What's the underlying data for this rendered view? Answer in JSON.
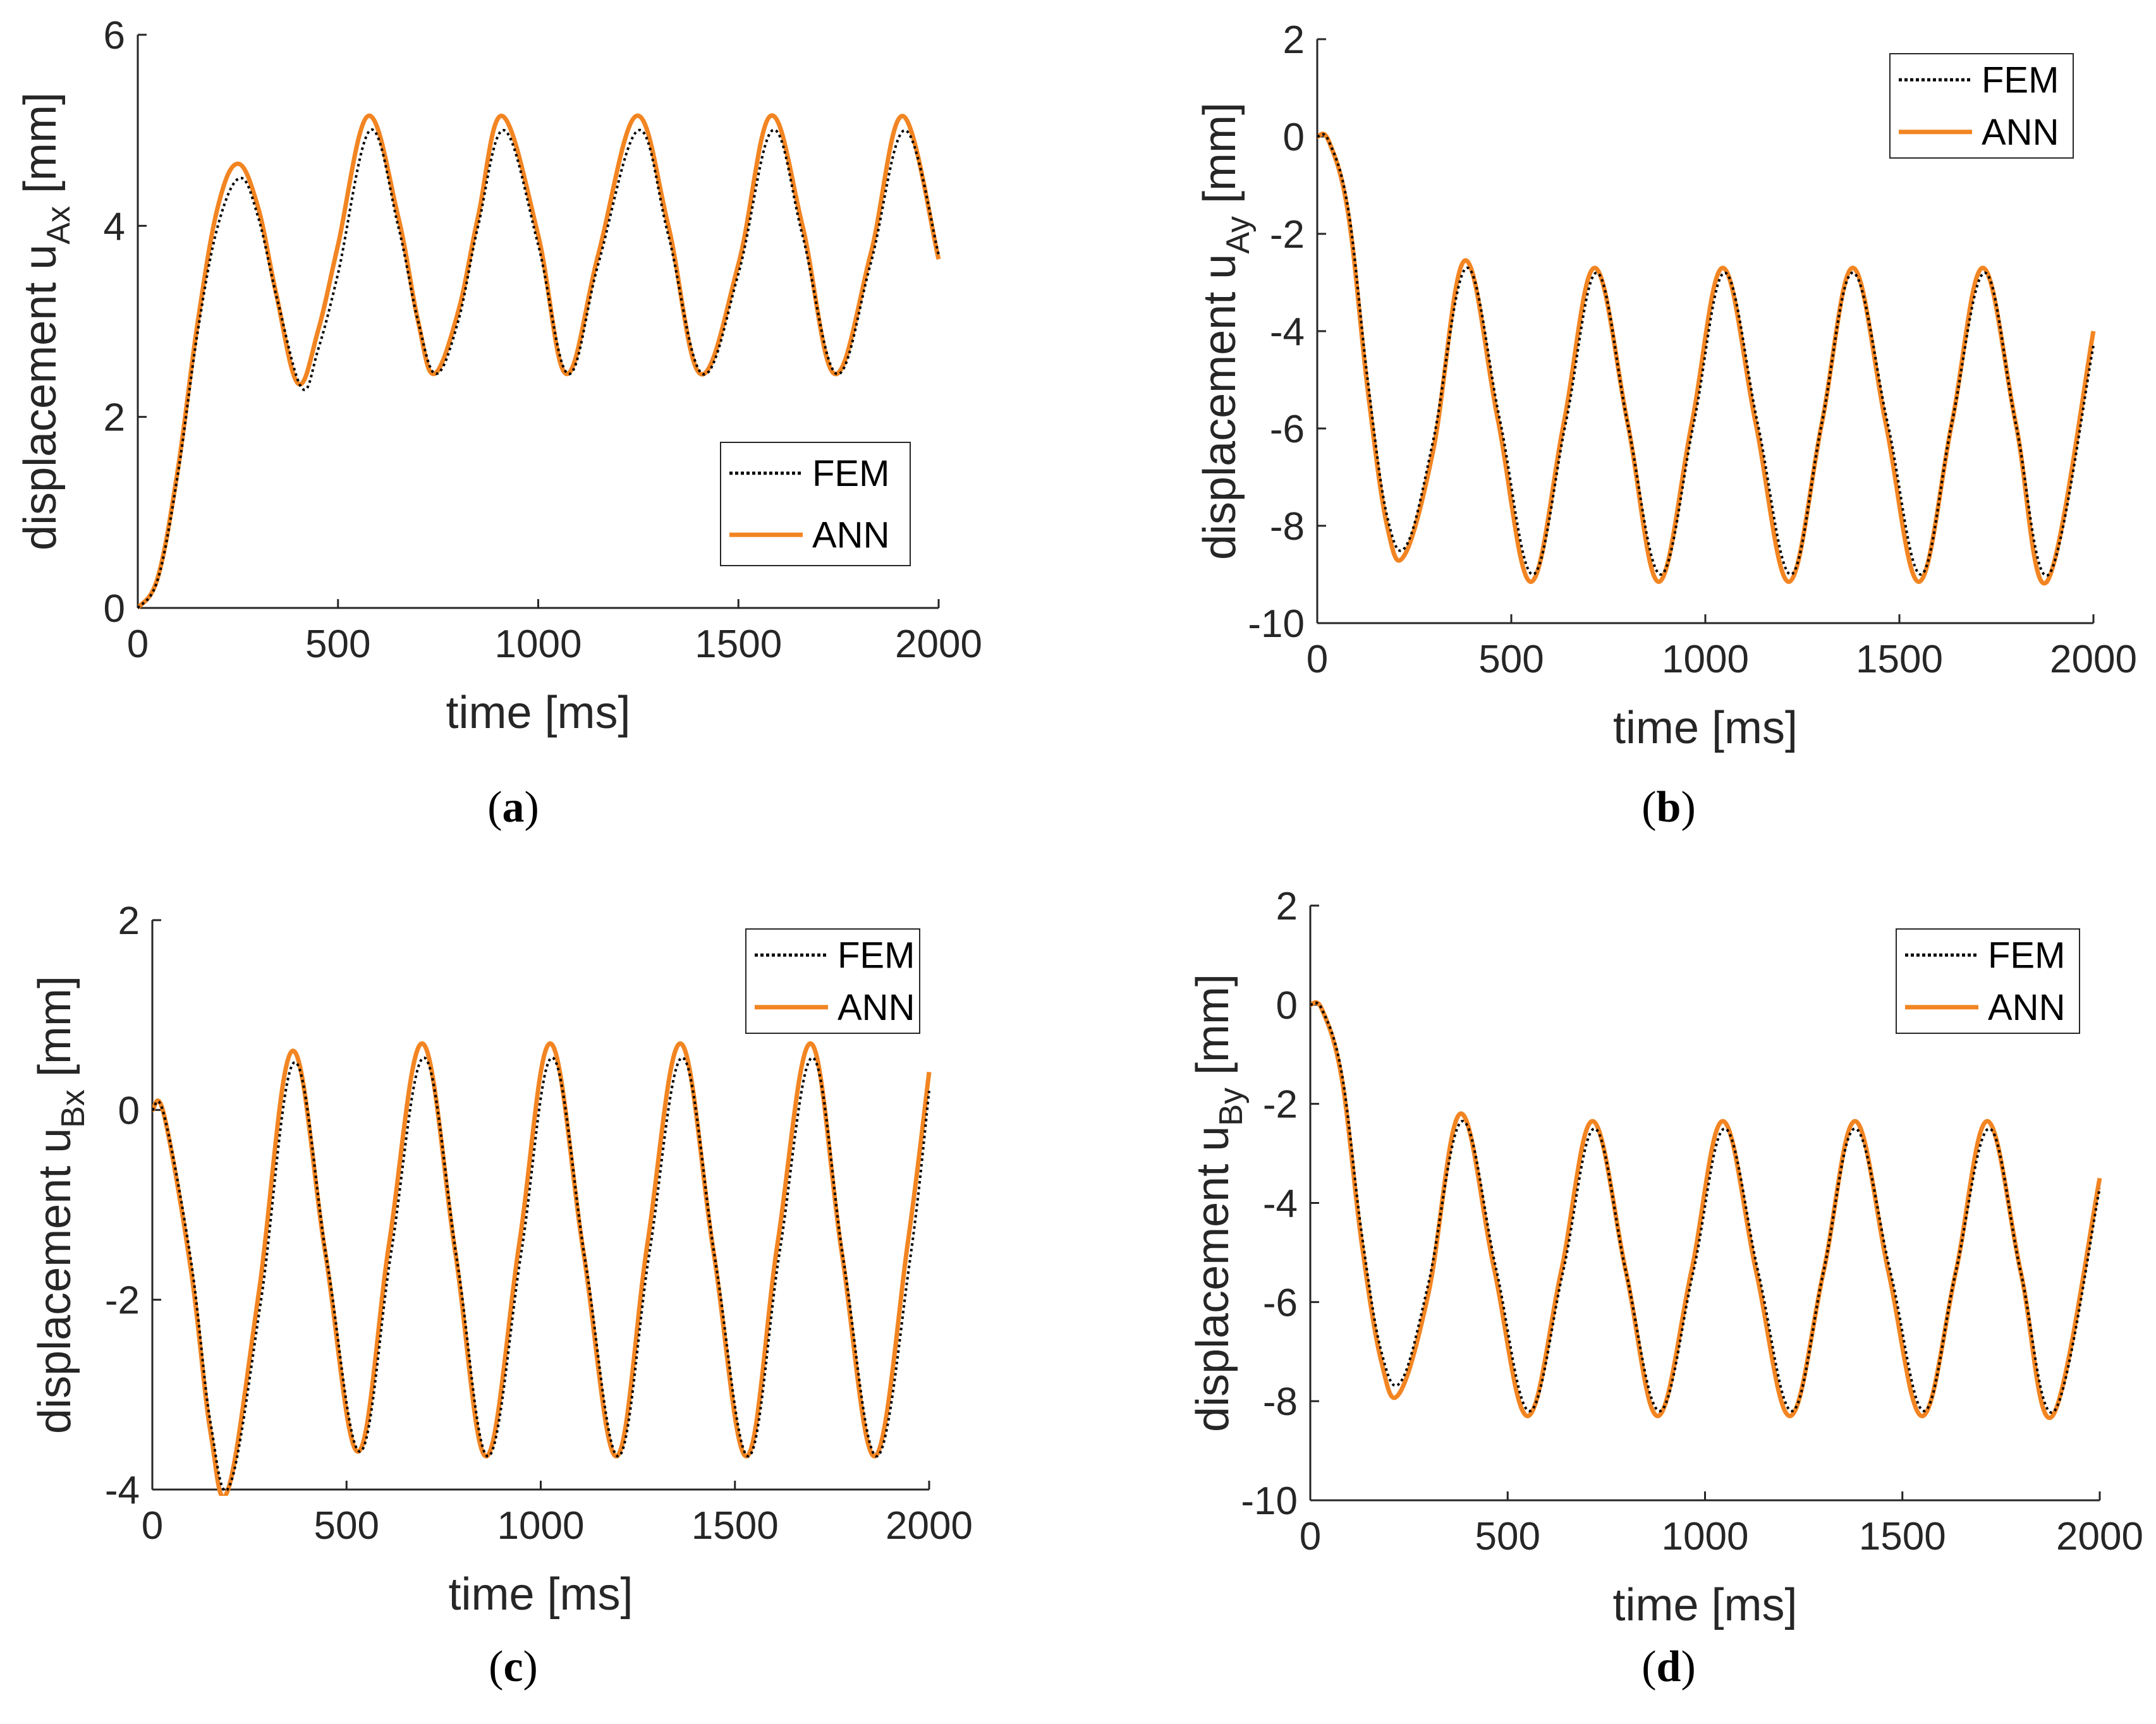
{
  "figure": {
    "colors": {
      "fem": "#000000",
      "ann": "#F28522",
      "axis": "#262626",
      "background": "#FFFFFF"
    }
  },
  "chart_data": [
    {
      "id": "a",
      "type": "line",
      "caption_open": "(",
      "caption_letter": "a",
      "caption_close": ")",
      "xlabel": "time [ms]",
      "ylabel_prefix": "displacement u",
      "ylabel_sub": "Ax",
      "ylabel_suffix": " [mm]",
      "xlim": [
        0,
        2000
      ],
      "ylim": [
        0,
        6
      ],
      "xticks": [
        0,
        500,
        1000,
        1500,
        2000
      ],
      "yticks": [
        0,
        2,
        4,
        6
      ],
      "xtick_labels": [
        "0",
        "500",
        "1000",
        "1500",
        "2000"
      ],
      "ytick_labels": [
        "0",
        "2",
        "4",
        "6"
      ],
      "legend": {
        "position": "bottom-right",
        "entries": [
          "FEM",
          "ANN"
        ]
      },
      "series": [
        {
          "name": "FEM",
          "style": "dotted",
          "x": [
            0,
            50,
            100,
            150,
            200,
            255,
            300,
            350,
            410,
            450,
            500,
            580,
            650,
            700,
            745,
            800,
            850,
            915,
            1000,
            1075,
            1150,
            1250,
            1325,
            1410,
            1500,
            1585,
            1660,
            1745,
            1830,
            1915,
            2000
          ],
          "y": [
            0,
            0.3,
            1.4,
            2.9,
            4.0,
            4.5,
            4.1,
            3.2,
            2.3,
            2.7,
            3.5,
            5.0,
            4.0,
            3.0,
            2.45,
            3.0,
            4.0,
            5.0,
            3.8,
            2.45,
            3.6,
            5.0,
            3.9,
            2.45,
            3.5,
            5.0,
            3.9,
            2.45,
            3.6,
            5.0,
            3.7
          ]
        },
        {
          "name": "ANN",
          "style": "solid",
          "x": [
            0,
            50,
            100,
            150,
            200,
            250,
            300,
            345,
            400,
            450,
            500,
            575,
            650,
            700,
            740,
            800,
            850,
            910,
            1000,
            1070,
            1150,
            1245,
            1325,
            1405,
            1500,
            1580,
            1660,
            1740,
            1830,
            1910,
            2000
          ],
          "y": [
            0,
            0.32,
            1.45,
            3.0,
            4.2,
            4.65,
            4.2,
            3.3,
            2.35,
            2.9,
            3.8,
            5.15,
            4.1,
            3.0,
            2.45,
            3.1,
            4.1,
            5.15,
            3.9,
            2.45,
            3.7,
            5.15,
            4.0,
            2.45,
            3.6,
            5.15,
            4.0,
            2.45,
            3.7,
            5.15,
            3.65
          ]
        }
      ]
    },
    {
      "id": "b",
      "type": "line",
      "caption_open": "(",
      "caption_letter": "b",
      "caption_close": ")",
      "xlabel": "time [ms]",
      "ylabel_prefix": "displacement u",
      "ylabel_sub": "Ay",
      "ylabel_suffix": " [mm]",
      "xlim": [
        0,
        2000
      ],
      "ylim": [
        -10,
        2
      ],
      "xticks": [
        0,
        500,
        1000,
        1500,
        2000
      ],
      "yticks": [
        -10,
        -8,
        -6,
        -4,
        -2,
        0,
        2
      ],
      "xtick_labels": [
        "0",
        "500",
        "1000",
        "1500",
        "2000"
      ],
      "ytick_labels": [
        "-10",
        "-8",
        "-6",
        "-4",
        "-2",
        "0",
        "2"
      ],
      "legend": {
        "position": "top-right",
        "entries": [
          "FEM",
          "ANN"
        ]
      },
      "series": [
        {
          "name": "FEM",
          "style": "dotted",
          "x": [
            0,
            30,
            80,
            130,
            180,
            230,
            300,
            385,
            470,
            555,
            640,
            720,
            800,
            885,
            970,
            1050,
            1135,
            1220,
            1300,
            1380,
            1470,
            1555,
            1635,
            1720,
            1800,
            1885,
            2000
          ],
          "y": [
            0,
            -0.1,
            -1.5,
            -5.0,
            -7.8,
            -8.4,
            -6.2,
            -2.7,
            -5.8,
            -9.0,
            -5.9,
            -2.8,
            -5.9,
            -9.0,
            -5.9,
            -2.8,
            -5.9,
            -9.0,
            -5.9,
            -2.8,
            -5.9,
            -9.0,
            -5.9,
            -2.8,
            -5.9,
            -9.0,
            -4.3
          ]
        },
        {
          "name": "ANN",
          "style": "solid",
          "x": [
            0,
            30,
            80,
            130,
            180,
            225,
            300,
            380,
            465,
            550,
            635,
            715,
            800,
            880,
            965,
            1045,
            1130,
            1215,
            1300,
            1380,
            1465,
            1550,
            1635,
            1715,
            1800,
            1880,
            2000
          ],
          "y": [
            0,
            -0.1,
            -1.6,
            -5.2,
            -8.0,
            -8.6,
            -6.4,
            -2.55,
            -5.8,
            -9.15,
            -5.9,
            -2.7,
            -5.9,
            -9.15,
            -5.9,
            -2.7,
            -5.9,
            -9.15,
            -5.9,
            -2.7,
            -5.9,
            -9.15,
            -5.9,
            -2.7,
            -5.9,
            -9.15,
            -4.0
          ]
        }
      ]
    },
    {
      "id": "c",
      "type": "line",
      "caption_open": "(",
      "caption_letter": "c",
      "caption_close": ")",
      "xlabel": "time [ms]",
      "ylabel_prefix": "displacement u",
      "ylabel_sub": "Bx",
      "ylabel_suffix": " [mm]",
      "xlim": [
        0,
        2000
      ],
      "ylim": [
        -4,
        2
      ],
      "xticks": [
        0,
        500,
        1000,
        1500,
        2000
      ],
      "yticks": [
        -4,
        -2,
        0,
        2
      ],
      "xtick_labels": [
        "0",
        "500",
        "1000",
        "1500",
        "2000"
      ],
      "ytick_labels": [
        "-4",
        "-2",
        "0",
        "2"
      ],
      "legend": {
        "position": "top-right",
        "entries": [
          "FEM",
          "ANN"
        ]
      },
      "series": [
        {
          "name": "FEM",
          "style": "dotted",
          "x": [
            0,
            30,
            100,
            150,
            200,
            280,
            365,
            450,
            535,
            615,
            700,
            785,
            865,
            950,
            1030,
            1115,
            1200,
            1280,
            1365,
            1450,
            1535,
            1615,
            1700,
            1780,
            1865,
            1950,
            2000
          ],
          "y": [
            0,
            -0.05,
            -1.6,
            -3.3,
            -3.95,
            -2.0,
            0.5,
            -1.6,
            -3.6,
            -1.5,
            0.55,
            -1.6,
            -3.65,
            -1.5,
            0.55,
            -1.6,
            -3.65,
            -1.5,
            0.55,
            -1.6,
            -3.65,
            -1.5,
            0.55,
            -1.6,
            -3.65,
            -1.6,
            0.2
          ]
        },
        {
          "name": "ANN",
          "style": "solid",
          "x": [
            0,
            30,
            100,
            150,
            195,
            275,
            360,
            445,
            530,
            610,
            695,
            780,
            860,
            945,
            1025,
            1110,
            1195,
            1275,
            1360,
            1445,
            1530,
            1610,
            1695,
            1775,
            1860,
            1945,
            2000
          ],
          "y": [
            0,
            -0.05,
            -1.7,
            -3.4,
            -4.0,
            -1.9,
            0.62,
            -1.5,
            -3.6,
            -1.4,
            0.7,
            -1.5,
            -3.65,
            -1.4,
            0.7,
            -1.5,
            -3.65,
            -1.4,
            0.7,
            -1.5,
            -3.65,
            -1.4,
            0.7,
            -1.5,
            -3.65,
            -1.4,
            0.4
          ]
        }
      ]
    },
    {
      "id": "d",
      "type": "line",
      "caption_open": "(",
      "caption_letter": "d",
      "caption_close": ")",
      "xlabel": "time [ms]",
      "ylabel_prefix": "displacement u",
      "ylabel_sub": "By",
      "ylabel_suffix": " [mm]",
      "xlim": [
        0,
        2000
      ],
      "ylim": [
        -10,
        2
      ],
      "xticks": [
        0,
        500,
        1000,
        1500,
        2000
      ],
      "yticks": [
        -10,
        -8,
        -6,
        -4,
        -2,
        0,
        2
      ],
      "xtick_labels": [
        "0",
        "500",
        "1000",
        "1500",
        "2000"
      ],
      "ytick_labels": [
        "-10",
        "-8",
        "-6",
        "-4",
        "-2",
        "0",
        "2"
      ],
      "legend": {
        "position": "top-right",
        "entries": [
          "FEM",
          "ANN"
        ]
      },
      "series": [
        {
          "name": "FEM",
          "style": "dotted",
          "x": [
            0,
            30,
            80,
            130,
            180,
            230,
            300,
            385,
            470,
            555,
            640,
            720,
            800,
            885,
            970,
            1050,
            1135,
            1220,
            1300,
            1380,
            1470,
            1555,
            1635,
            1720,
            1800,
            1885,
            2000
          ],
          "y": [
            0,
            -0.1,
            -1.4,
            -4.6,
            -7.0,
            -7.6,
            -5.6,
            -2.35,
            -5.3,
            -8.2,
            -5.4,
            -2.5,
            -5.4,
            -8.2,
            -5.4,
            -2.5,
            -5.4,
            -8.2,
            -5.4,
            -2.5,
            -5.4,
            -8.2,
            -5.4,
            -2.5,
            -5.4,
            -8.2,
            -3.7
          ]
        },
        {
          "name": "ANN",
          "style": "solid",
          "x": [
            0,
            30,
            80,
            130,
            180,
            225,
            300,
            380,
            465,
            550,
            635,
            715,
            800,
            880,
            965,
            1045,
            1130,
            1215,
            1300,
            1380,
            1465,
            1550,
            1635,
            1715,
            1800,
            1880,
            2000
          ],
          "y": [
            0,
            -0.1,
            -1.5,
            -4.8,
            -7.2,
            -7.85,
            -5.8,
            -2.2,
            -5.3,
            -8.3,
            -5.4,
            -2.35,
            -5.4,
            -8.3,
            -5.4,
            -2.35,
            -5.4,
            -8.3,
            -5.4,
            -2.35,
            -5.4,
            -8.3,
            -5.4,
            -2.35,
            -5.4,
            -8.3,
            -3.5
          ]
        }
      ]
    }
  ]
}
